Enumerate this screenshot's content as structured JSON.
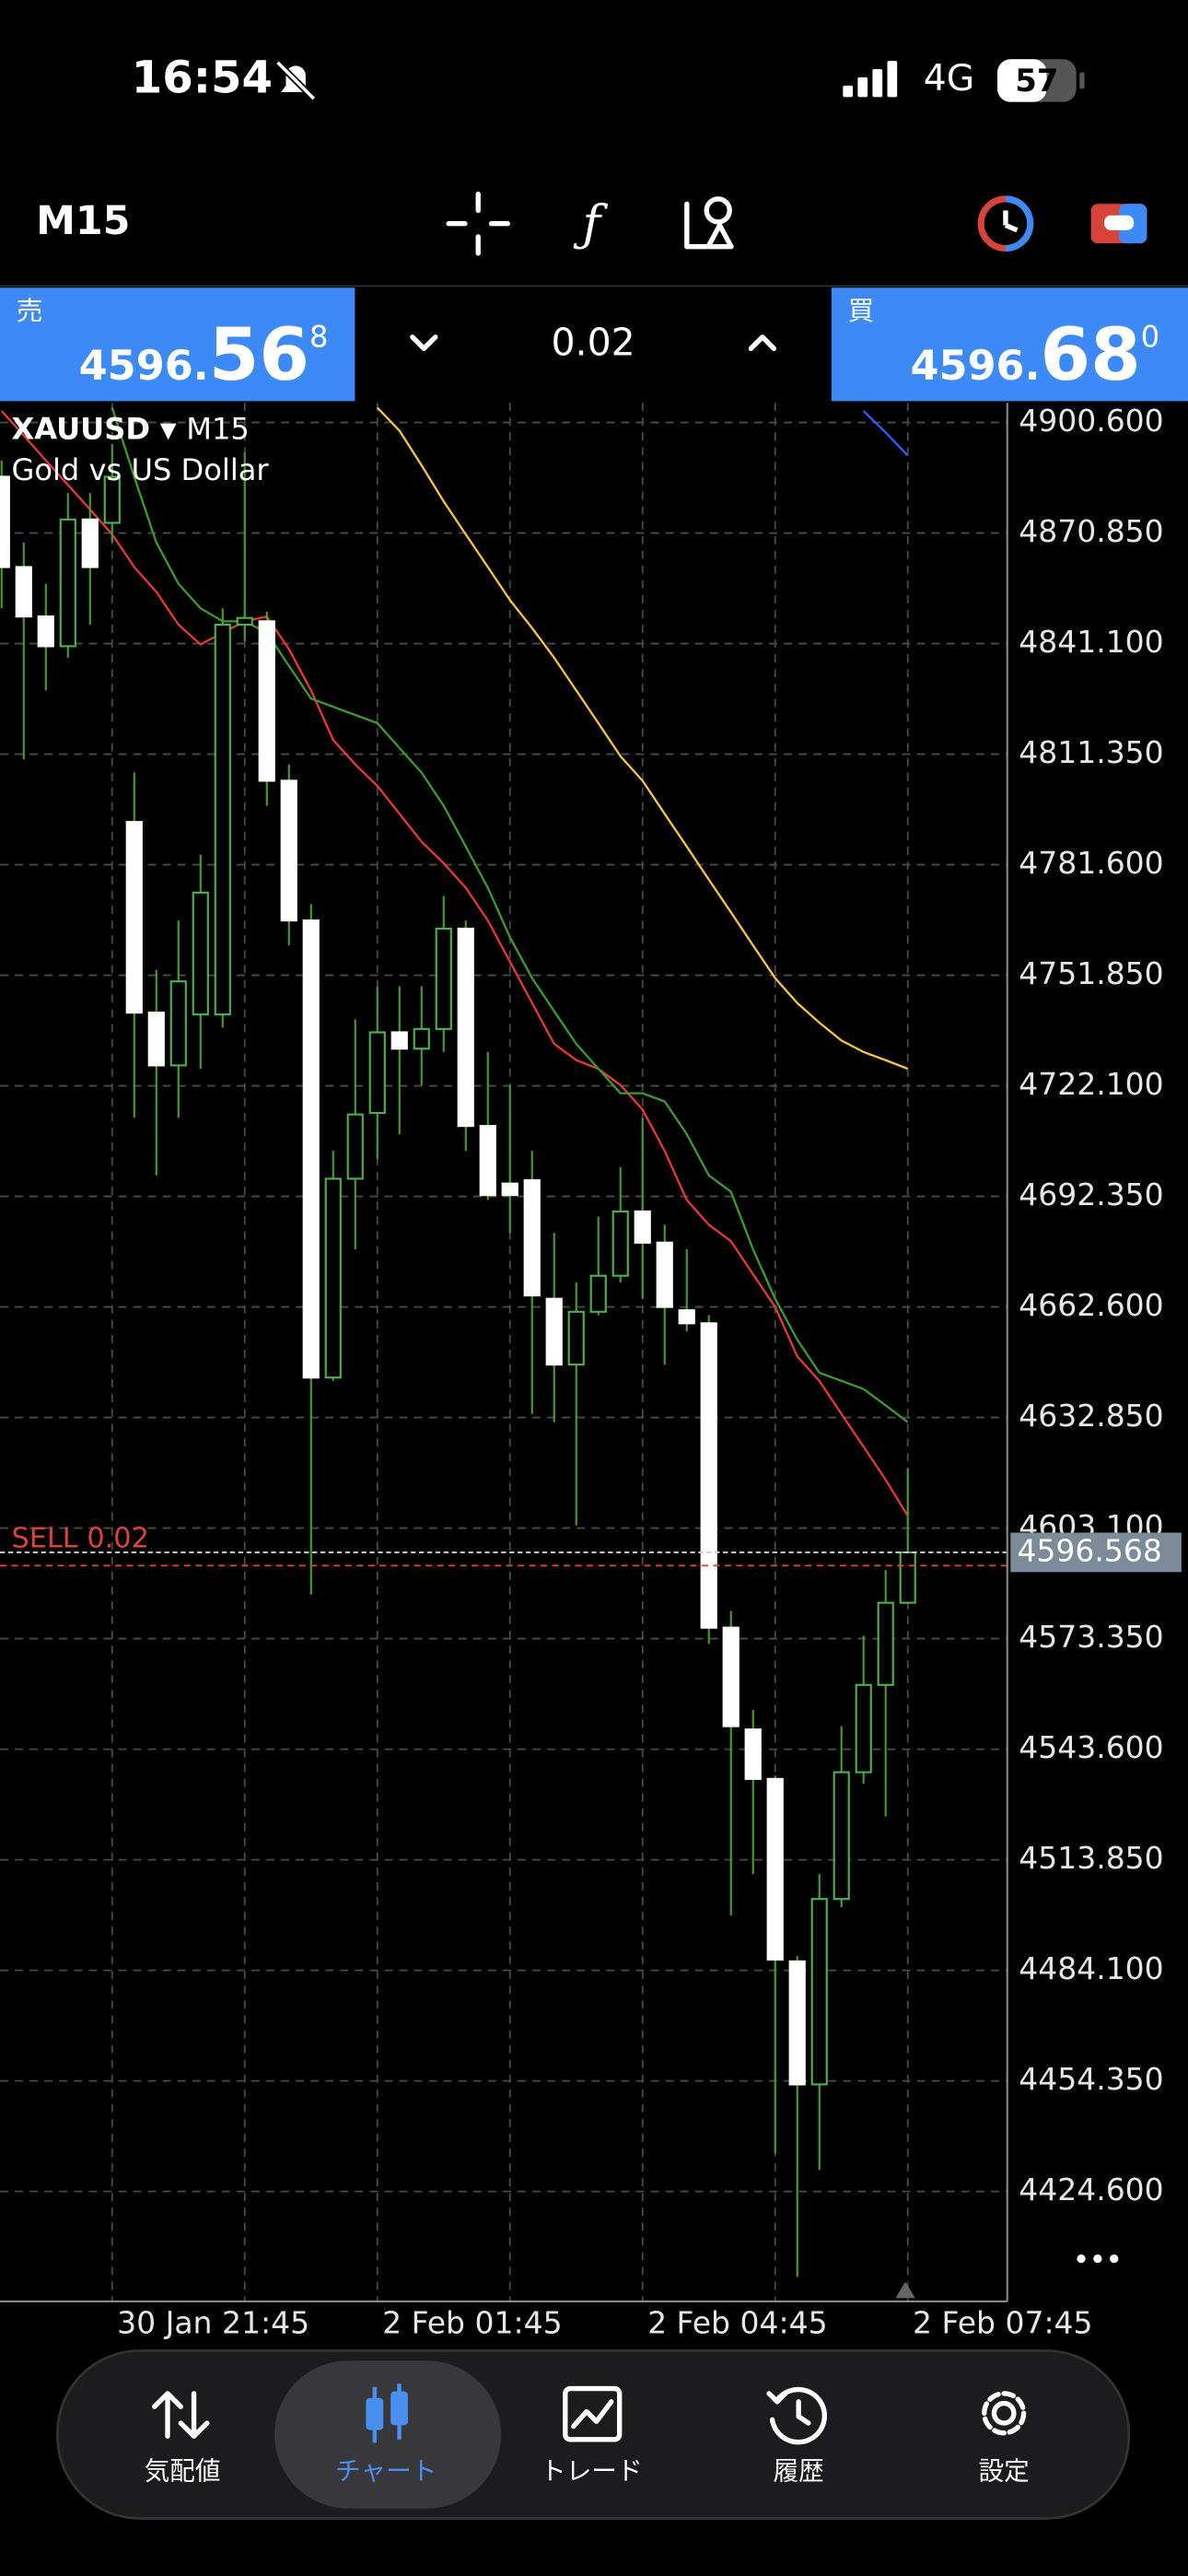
{
  "status_bar": {
    "time": "16:54",
    "network": "4G",
    "battery": "57"
  },
  "toolbar": {
    "timeframe": "M15"
  },
  "trade_panel": {
    "sell": {
      "label": "売",
      "price_prefix": "4596.",
      "price_main": "56",
      "price_sup": "8"
    },
    "lot": "0.02",
    "buy": {
      "label": "買",
      "price_prefix": "4596.",
      "price_main": "68",
      "price_sup": "0"
    }
  },
  "chart_data": {
    "type": "candlestick",
    "symbol": "XAUUSD",
    "description": "Gold vs US Dollar",
    "categories": [
      null,
      null,
      null,
      null,
      null,
      "30 Jan 21:45",
      null,
      null,
      null,
      null,
      null,
      null,
      null,
      null,
      null,
      null,
      null,
      "2 Feb 01:45",
      null,
      null,
      null,
      null,
      null,
      null,
      null,
      null,
      null,
      null,
      null,
      "2 Feb 04:45",
      null,
      null,
      null,
      null,
      null,
      null,
      null,
      null,
      null,
      null,
      null,
      "2 Feb 07:45"
    ],
    "open": [
      4886.0,
      4861.7,
      4848.4,
      4840.4,
      4874.5,
      4873.6,
      4793.1,
      4741.8,
      4727.6,
      4741.3,
      4741.3,
      4846.2,
      4847.1,
      4804.2,
      4766.6,
      4643.6,
      4697.1,
      4714.8,
      4736.5,
      4732.1,
      4737.4,
      4764.4,
      4711.3,
      4695.8,
      4696.7,
      4664.8,
      4647.1,
      4661.3,
      4671.0,
      4688.3,
      4679.9,
      4661.7,
      4658.2,
      4576.3,
      4548.9,
      4535.6,
      4486.5,
      4453.4,
      4503.3,
      4537.4,
      4560.9,
      4583.0
    ],
    "high": [
      4890.4,
      4868.3,
      4857.2,
      4881.6,
      4881.6,
      4894.8,
      4806.4,
      4753.3,
      4766.6,
      4784.3,
      4850.6,
      4892.6,
      4849.7,
      4808.6,
      4771.0,
      4704.6,
      4740.0,
      4748.9,
      4748.9,
      4748.9,
      4773.2,
      4766.6,
      4731.2,
      4722.3,
      4704.6,
      4682.5,
      4669.2,
      4686.9,
      4700.2,
      4713.5,
      4684.7,
      4678.1,
      4660.4,
      4580.8,
      4554.2,
      4536.5,
      4487.9,
      4510.0,
      4549.8,
      4574.1,
      4591.8,
      4619.2
    ],
    "low": [
      4850.6,
      4809.9,
      4828.5,
      4837.3,
      4846.2,
      4868.3,
      4713.5,
      4698.0,
      4713.5,
      4726.7,
      4737.8,
      4841.8,
      4797.5,
      4759.9,
      4585.2,
      4642.7,
      4678.1,
      4702.4,
      4709.1,
      4722.3,
      4731.2,
      4704.6,
      4691.4,
      4682.5,
      4633.8,
      4631.6,
      4603.8,
      4660.4,
      4669.2,
      4664.8,
      4647.1,
      4656.0,
      4571.9,
      4498.9,
      4510.0,
      4434.8,
      4401.6,
      4430.4,
      4501.1,
      4534.3,
      4525.5,
      4583.0
    ],
    "close": [
      4861.7,
      4848.4,
      4840.4,
      4874.5,
      4861.7,
      4886.0,
      4741.8,
      4727.6,
      4750.2,
      4774.1,
      4846.2,
      4848.0,
      4804.2,
      4766.6,
      4643.6,
      4697.1,
      4714.4,
      4736.5,
      4732.1,
      4737.4,
      4764.4,
      4711.3,
      4692.7,
      4692.7,
      4665.7,
      4647.1,
      4661.3,
      4671.0,
      4688.3,
      4679.9,
      4662.6,
      4658.2,
      4576.3,
      4549.8,
      4535.6,
      4487.0,
      4453.4,
      4503.3,
      4537.4,
      4560.9,
      4583.0,
      4596.568
    ],
    "up_color": "#4caf50",
    "down_color": "#ffffff",
    "wick_color": "#4c9a2a",
    "series": [
      {
        "color": "#e53935",
        "values": [
          4903.7,
          4897.1,
          4890.4,
          4883.8,
          4877.2,
          4870.5,
          4861.7,
          4855.0,
          4846.2,
          4840.9,
          4844.0,
          4847.1,
          4848.4,
          4839.6,
          4828.5,
          4815.2,
          4808.6,
          4802.8,
          4795.3,
          4787.8,
          4782.0,
          4775.4,
          4766.6,
          4755.5,
          4744.4,
          4733.4,
          4729.0,
          4726.7,
          4722.3,
          4715.7,
          4704.6,
          4691.4,
          4684.7,
          4680.3,
          4671.4,
          4662.6,
          4649.3,
          4642.7,
          4633.8,
          4625.0,
          4616.1,
          4606.4
        ]
      },
      {
        "color": "#3c9a2e",
        "values": [
          null,
          null,
          null,
          null,
          null,
          4904.6,
          4886.0,
          4868.3,
          4857.2,
          4850.6,
          4847.1,
          4847.1,
          4844.0,
          4835.1,
          4826.3,
          4824.1,
          4821.9,
          4819.7,
          4813.0,
          4806.4,
          4797.5,
          4786.5,
          4775.4,
          4762.1,
          4751.1,
          4742.2,
          4733.4,
          4726.7,
          4720.1,
          4720.1,
          4717.9,
          4709.1,
          4698.0,
          4693.6,
          4678.1,
          4664.8,
          4653.8,
          4644.9,
          4642.7,
          4640.5,
          4636.1,
          4631.6
        ]
      },
      {
        "color": "#f5c542",
        "values": [
          null,
          null,
          null,
          null,
          null,
          null,
          null,
          null,
          null,
          null,
          null,
          null,
          null,
          null,
          null,
          null,
          null,
          4904.6,
          4898.4,
          4889.1,
          4879.4,
          4870.5,
          4861.7,
          4852.8,
          4845.3,
          4837.3,
          4828.5,
          4819.7,
          4810.8,
          4804.2,
          4795.3,
          4786.5,
          4777.6,
          4768.8,
          4759.9,
          4751.1,
          4744.4,
          4739.1,
          4734.3,
          4731.2,
          4729.0,
          4726.7
        ]
      },
      {
        "color": "#3d5afe",
        "values": [
          null,
          null,
          null,
          null,
          null,
          null,
          null,
          null,
          null,
          null,
          null,
          null,
          null,
          null,
          null,
          null,
          null,
          null,
          null,
          null,
          null,
          null,
          null,
          null,
          null,
          null,
          null,
          null,
          null,
          null,
          null,
          null,
          null,
          null,
          null,
          null,
          null,
          null,
          null,
          4903.7,
          4897.9,
          4891.7
        ]
      }
    ],
    "ylim": [
      4395.0,
      4905.9
    ],
    "yticks": [
      {
        "value": 4900.6,
        "label": "4900.600"
      },
      {
        "value": 4870.85,
        "label": "4870.850"
      },
      {
        "value": 4841.1,
        "label": "4841.100"
      },
      {
        "value": 4811.35,
        "label": "4811.350"
      },
      {
        "value": 4781.6,
        "label": "4781.600"
      },
      {
        "value": 4751.85,
        "label": "4751.850"
      },
      {
        "value": 4722.1,
        "label": "4722.100"
      },
      {
        "value": 4692.35,
        "label": "4692.350"
      },
      {
        "value": 4662.6,
        "label": "4662.600"
      },
      {
        "value": 4632.85,
        "label": "4632.850"
      },
      {
        "value": 4603.1,
        "label": "4603.100"
      },
      {
        "value": 4573.35,
        "label": "4573.350"
      },
      {
        "value": 4543.6,
        "label": "4543.600"
      },
      {
        "value": 4513.85,
        "label": "4513.850"
      },
      {
        "value": 4484.1,
        "label": "4484.100"
      },
      {
        "value": 4454.35,
        "label": "4454.350"
      },
      {
        "value": 4424.6,
        "label": "4424.600"
      }
    ],
    "grid": true,
    "position": {
      "label": "SELL 0.02",
      "price": 4593.0,
      "color": "#d9443a"
    }
  },
  "tabs": [
    "気配値",
    "チャート",
    "トレード",
    "履歴",
    "設定"
  ],
  "active_tab": 1
}
